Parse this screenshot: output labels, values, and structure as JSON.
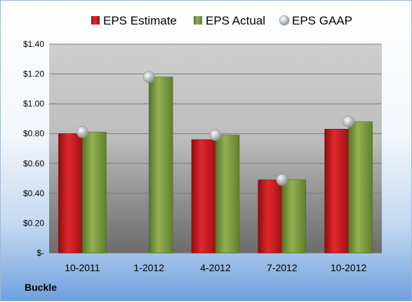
{
  "company": "Buckle",
  "chart_data": {
    "type": "bar",
    "categories": [
      "10-2011",
      "1-2012",
      "4-2012",
      "7-2012",
      "10-2012"
    ],
    "series": [
      {
        "name": "EPS Estimate",
        "kind": "bar",
        "color": "#c0161b",
        "values": [
          0.8,
          null,
          0.76,
          0.49,
          0.83
        ]
      },
      {
        "name": "EPS Actual",
        "kind": "bar",
        "color": "#7a9a3a",
        "values": [
          0.81,
          1.18,
          0.79,
          0.49,
          0.88
        ]
      },
      {
        "name": "EPS GAAP",
        "kind": "marker",
        "color": "#b8bcc4",
        "values": [
          0.81,
          1.18,
          0.79,
          0.49,
          0.88
        ]
      }
    ],
    "ylim": [
      0,
      1.4
    ],
    "yticks": [
      0,
      0.2,
      0.4,
      0.6,
      0.8,
      1.0,
      1.2,
      1.4
    ],
    "ytick_labels": [
      "$-",
      "$0.20",
      "$0.40",
      "$0.60",
      "$0.80",
      "$1.00",
      "$1.20",
      "$1.40"
    ],
    "grid": true,
    "legend_position": "top"
  }
}
